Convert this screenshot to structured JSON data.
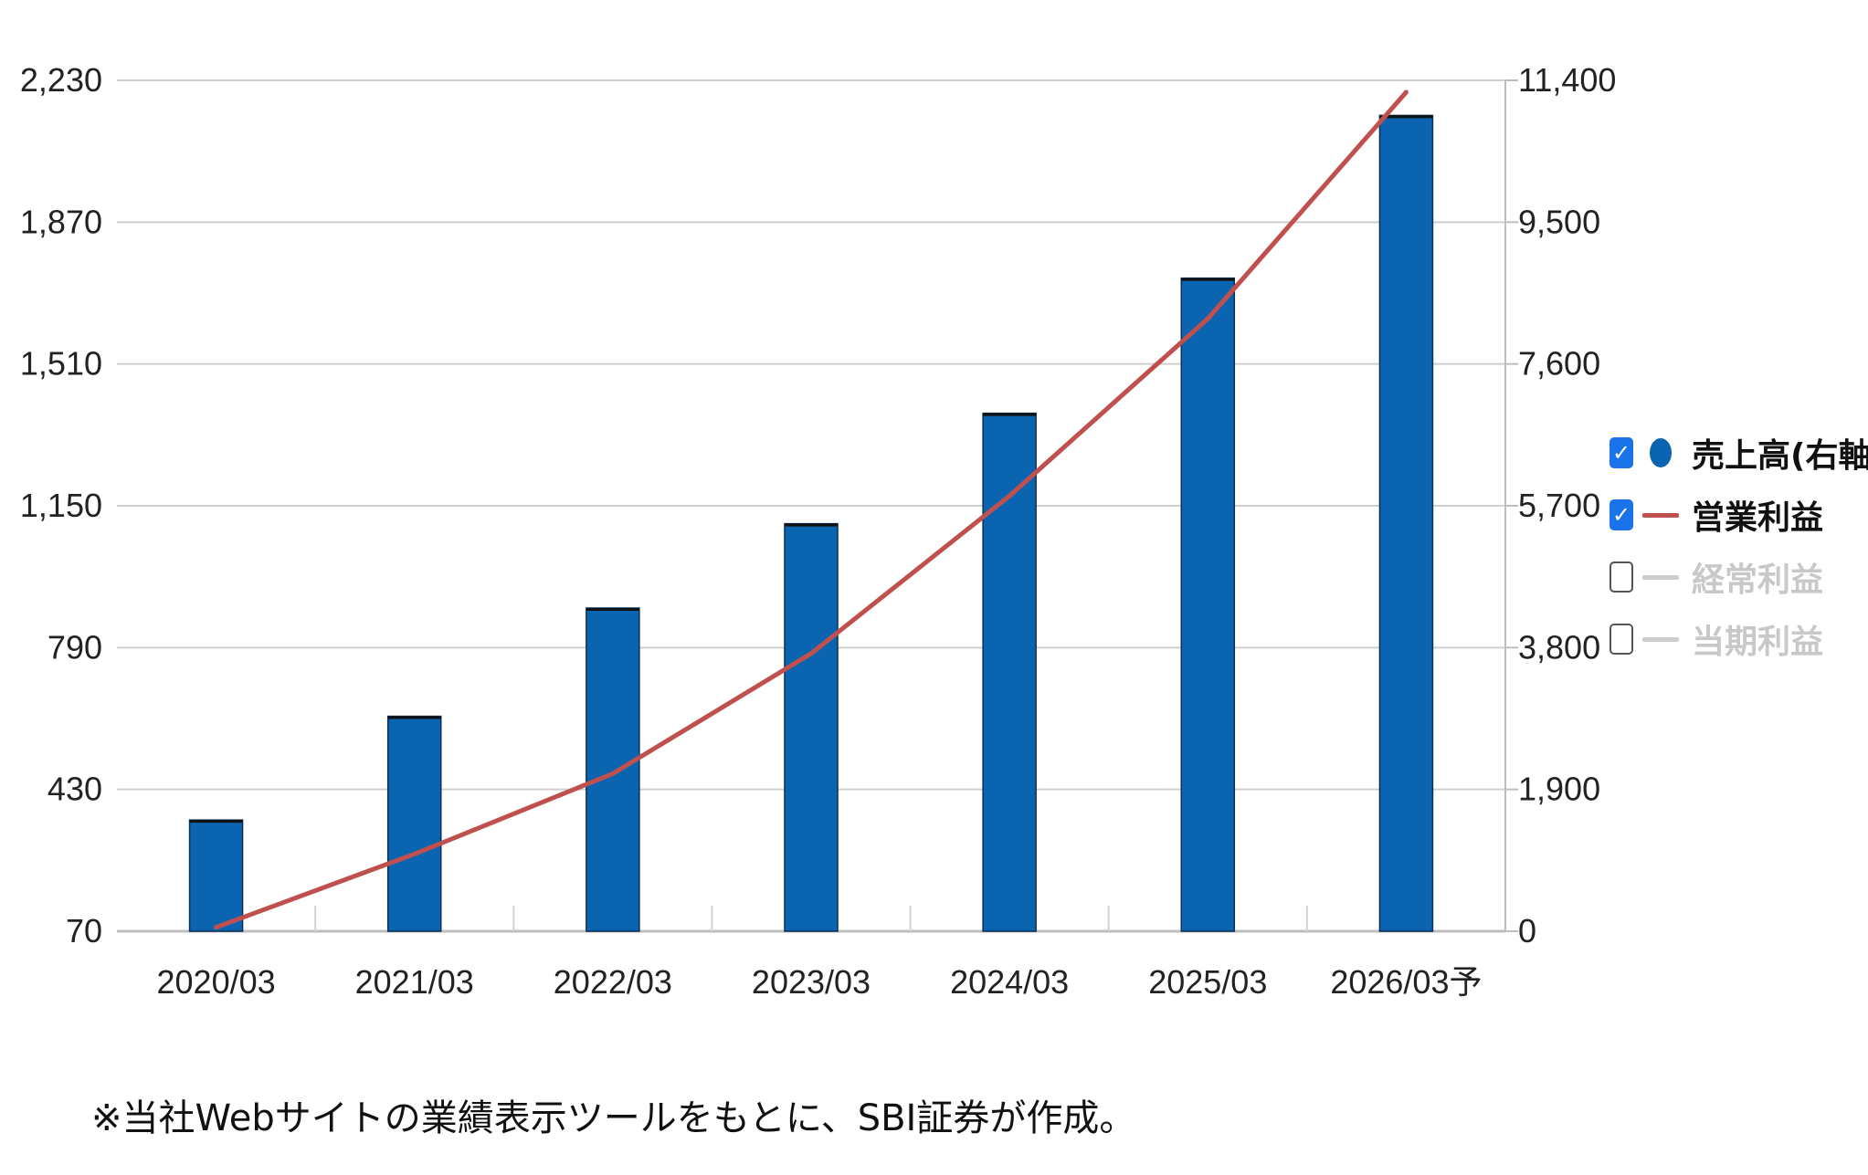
{
  "chart_data": {
    "type": "bar",
    "categories": [
      "2020/03",
      "2021/03",
      "2022/03",
      "2023/03",
      "2024/03",
      "2025/03",
      "2026/03予"
    ],
    "series": [
      {
        "name": "売上高(右軸)",
        "type": "bar",
        "axis": "right",
        "color": "#0a64b0",
        "values": [
          1490,
          2880,
          4330,
          5460,
          6940,
          8750,
          10930
        ]
      },
      {
        "name": "営業利益",
        "type": "line",
        "axis": "left",
        "color": "#c0504d",
        "values": [
          80,
          266,
          470,
          775,
          1175,
          1625,
          2200
        ]
      }
    ],
    "left_axis": {
      "ylim": [
        70,
        2230
      ],
      "ticks": [
        "2,230",
        "1,870",
        "1,510",
        "1,150",
        "790",
        "430",
        "70"
      ]
    },
    "right_axis": {
      "ylim": [
        0,
        11400
      ],
      "ticks": [
        "11,400",
        "9,500",
        "7,600",
        "5,700",
        "3,800",
        "1,900",
        "0"
      ]
    },
    "grid": true,
    "legend_position": "right"
  },
  "legend": {
    "items": [
      {
        "label": "売上高(右軸)",
        "checked": true,
        "symbol": "dot",
        "color": "#0a64b0",
        "text_color": "#111111"
      },
      {
        "label": "営業利益",
        "checked": true,
        "symbol": "line",
        "color": "#c0504d",
        "text_color": "#111111"
      },
      {
        "label": "経常利益",
        "checked": false,
        "symbol": "line",
        "color": "#cccccc",
        "text_color": "#c8c8c8"
      },
      {
        "label": "当期利益",
        "checked": false,
        "symbol": "line",
        "color": "#cccccc",
        "text_color": "#c8c8c8"
      }
    ]
  },
  "footnote": "※当社Webサイトの業績表示ツールをもとに、SBI証券が作成。"
}
